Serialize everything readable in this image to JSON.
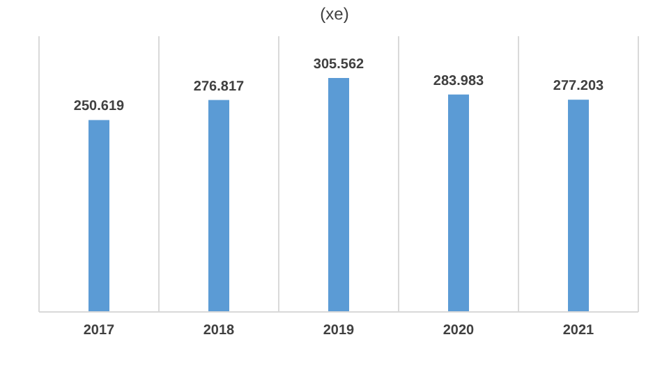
{
  "chart_data": {
    "type": "bar",
    "title": "(xe)",
    "categories": [
      "2017",
      "2018",
      "2019",
      "2020",
      "2021"
    ],
    "values": [
      250.619,
      276.817,
      305.562,
      283.983,
      277.203
    ],
    "color": "#5b9bd5",
    "data_labels": true,
    "grid": "x"
  }
}
